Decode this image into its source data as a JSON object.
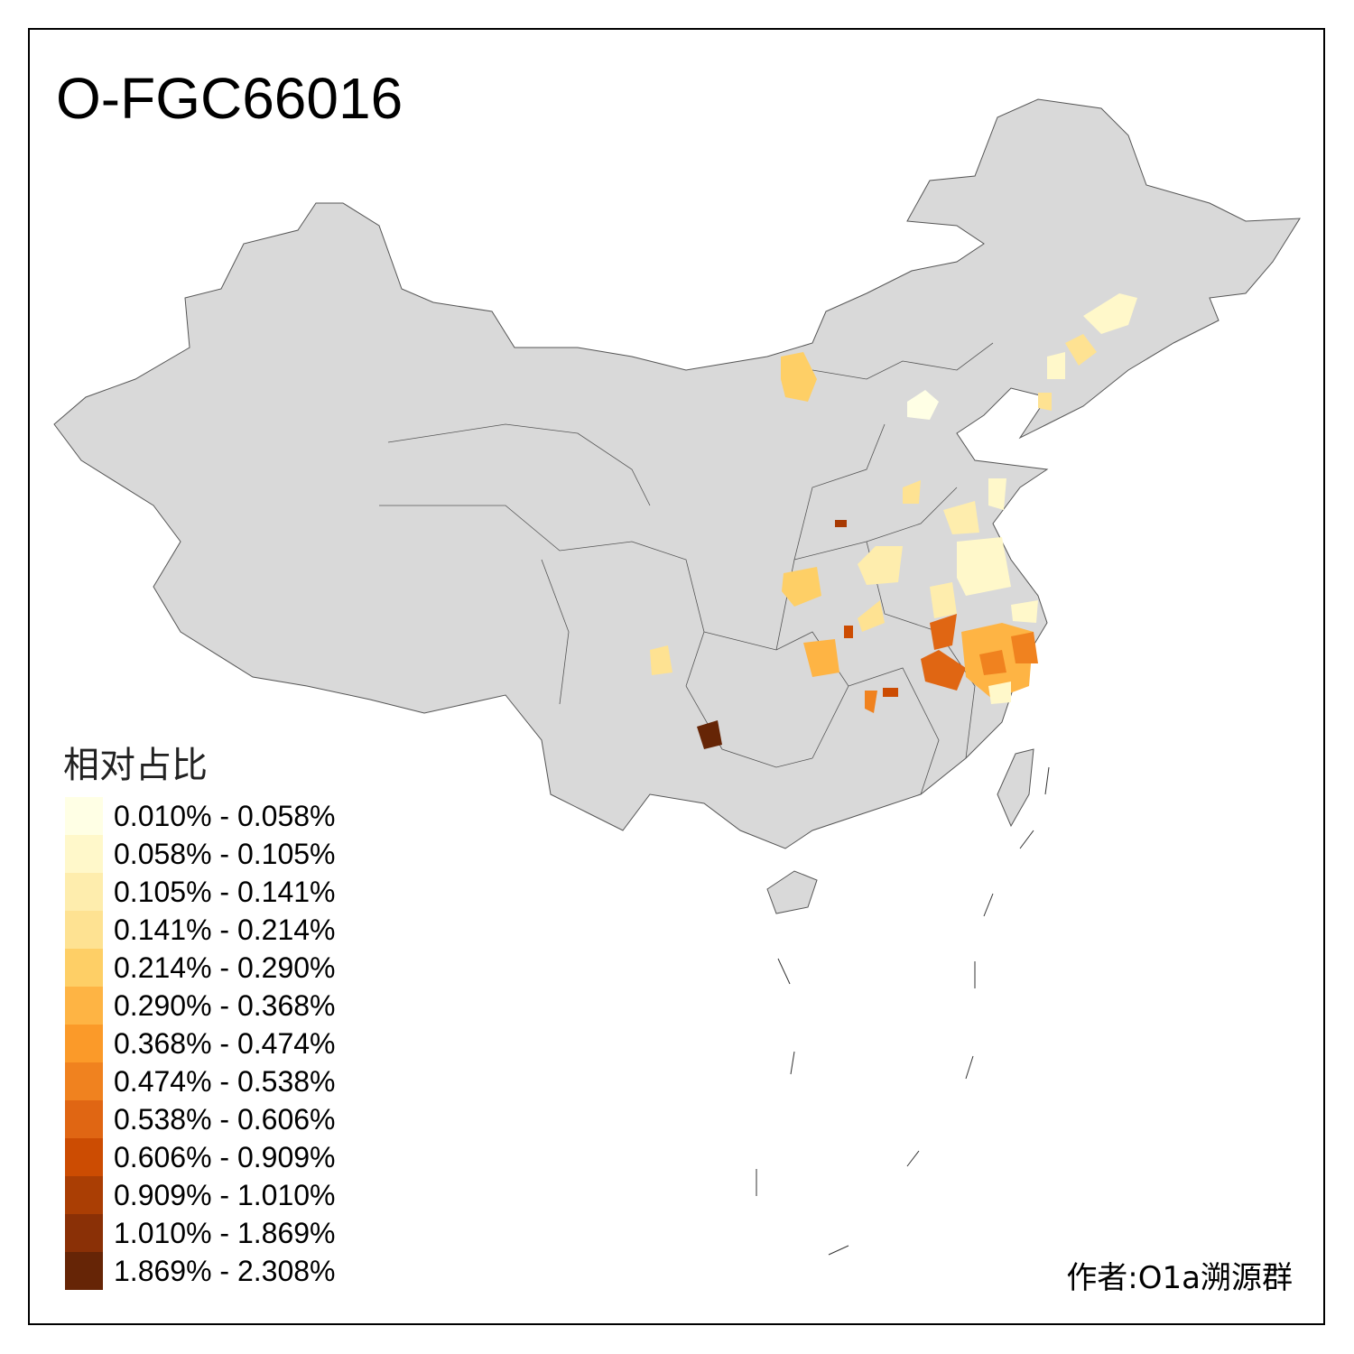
{
  "title": "O-FGC66016",
  "legend": {
    "title": "相对占比",
    "items": [
      {
        "label": "0.010% - 0.058%",
        "color": "#FFFFE5"
      },
      {
        "label": "0.058% - 0.105%",
        "color": "#FFF8CA"
      },
      {
        "label": "0.105% - 0.141%",
        "color": "#FEEDAD"
      },
      {
        "label": "0.141% - 0.214%",
        "color": "#FEE292"
      },
      {
        "label": "0.214% - 0.290%",
        "color": "#FECF66"
      },
      {
        "label": "0.290% - 0.368%",
        "color": "#FEB444"
      },
      {
        "label": "0.368% - 0.474%",
        "color": "#FB9A29"
      },
      {
        "label": "0.474% - 0.538%",
        "color": "#F0821F"
      },
      {
        "label": "0.538% - 0.606%",
        "color": "#E06613"
      },
      {
        "label": "0.606% - 0.909%",
        "color": "#CC4C02"
      },
      {
        "label": "0.909% - 1.010%",
        "color": "#AA3E04"
      },
      {
        "label": "1.010% - 1.869%",
        "color": "#8A3006"
      },
      {
        "label": "1.869% - 2.308%",
        "color": "#662506"
      }
    ]
  },
  "map": {
    "base_color": "#D9D9D9",
    "border_color": "#555555"
  },
  "credit": "作者:O1a溯源群"
}
